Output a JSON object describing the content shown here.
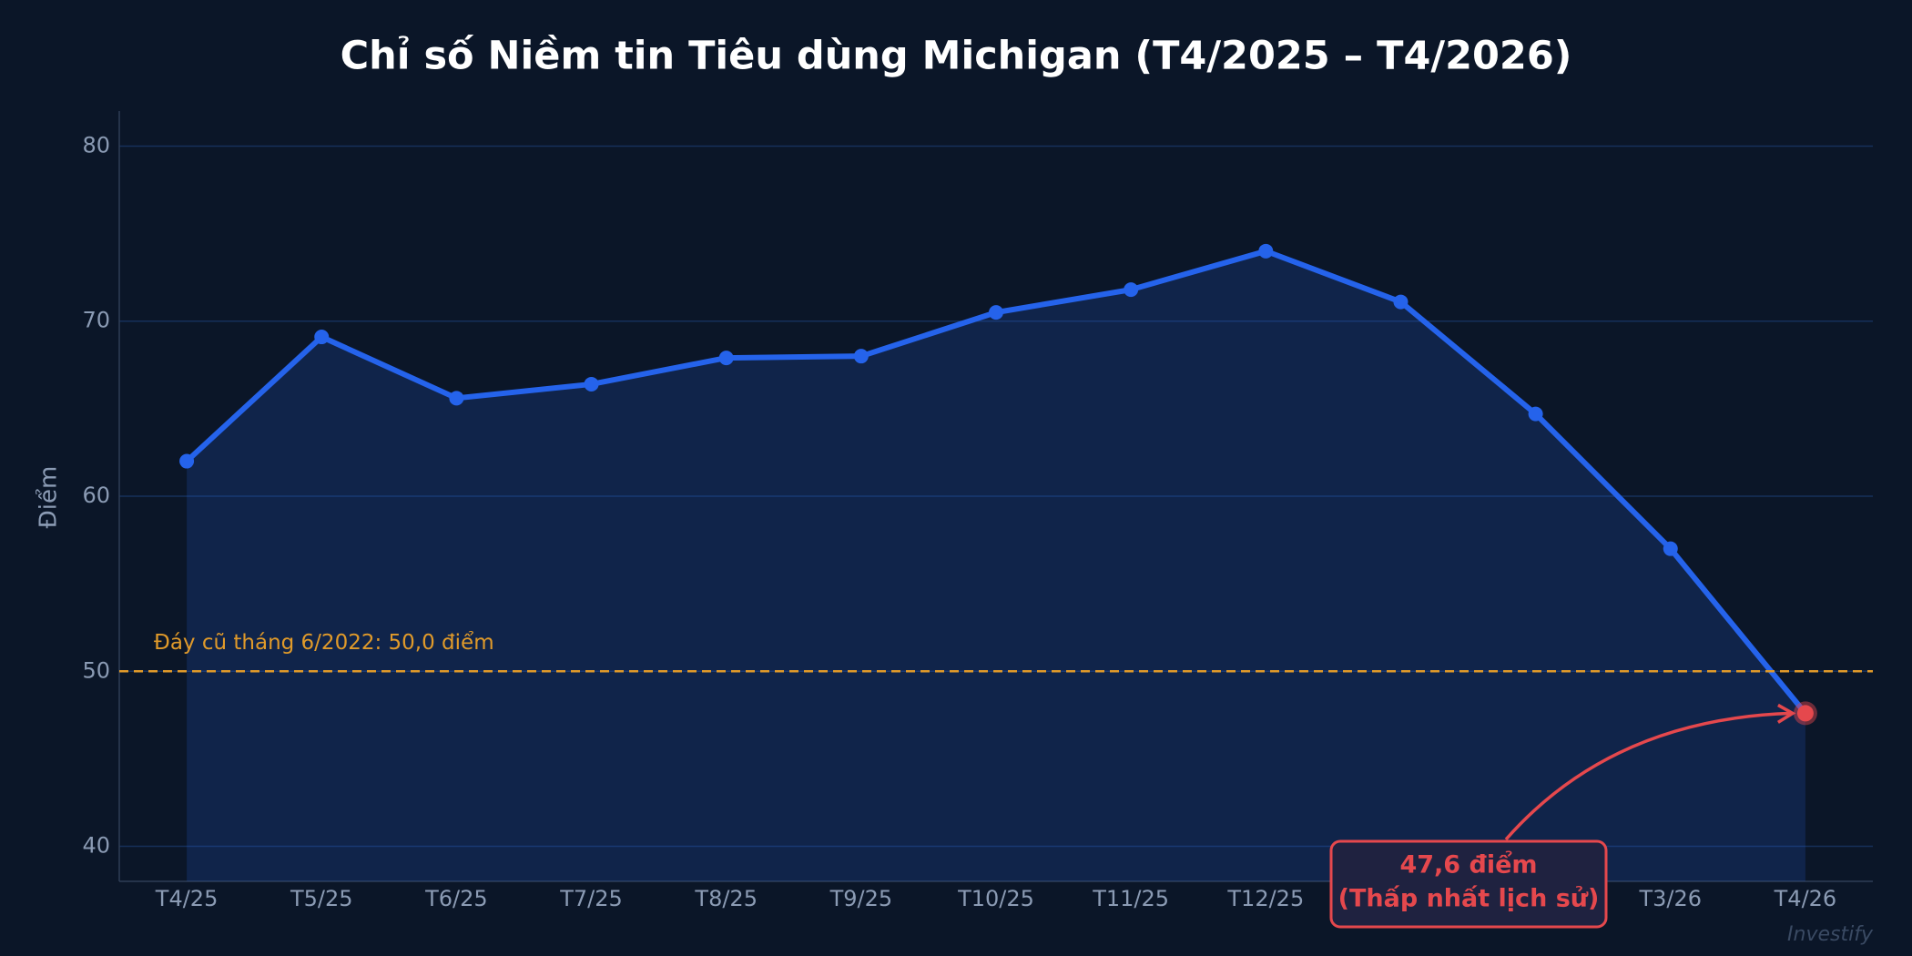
{
  "chart_data": {
    "type": "line",
    "title": "Chỉ số Niềm tin Tiêu dùng Michigan (T4/2025 – T4/2026)",
    "y_label": "Điểm",
    "categories": [
      "T4/25",
      "T5/25",
      "T6/25",
      "T7/25",
      "T8/25",
      "T9/25",
      "T10/25",
      "T11/25",
      "T12/25",
      null,
      null,
      "T3/26",
      "T4/26"
    ],
    "series": [
      {
        "name": "Chỉ số Niềm tin Tiêu dùng Michigan",
        "color": "#2563eb",
        "values": [
          62.0,
          69.1,
          65.6,
          66.4,
          67.9,
          68.0,
          70.5,
          71.8,
          74.0,
          71.1,
          64.7,
          57.0,
          47.6
        ]
      }
    ],
    "highlight_color": "#e5484d",
    "ylim": [
      38,
      82
    ],
    "yticks": [
      40,
      50,
      60,
      70,
      80
    ],
    "grid": true,
    "reference_line": {
      "value": 50,
      "label": "Đáy cũ tháng 6/2022: 50,0 điểm",
      "color": "#e09a2a"
    },
    "annotation": {
      "lines": [
        "47,6 điểm",
        "(Thấp nhất lịch sử)"
      ]
    },
    "watermark": "Investify"
  }
}
